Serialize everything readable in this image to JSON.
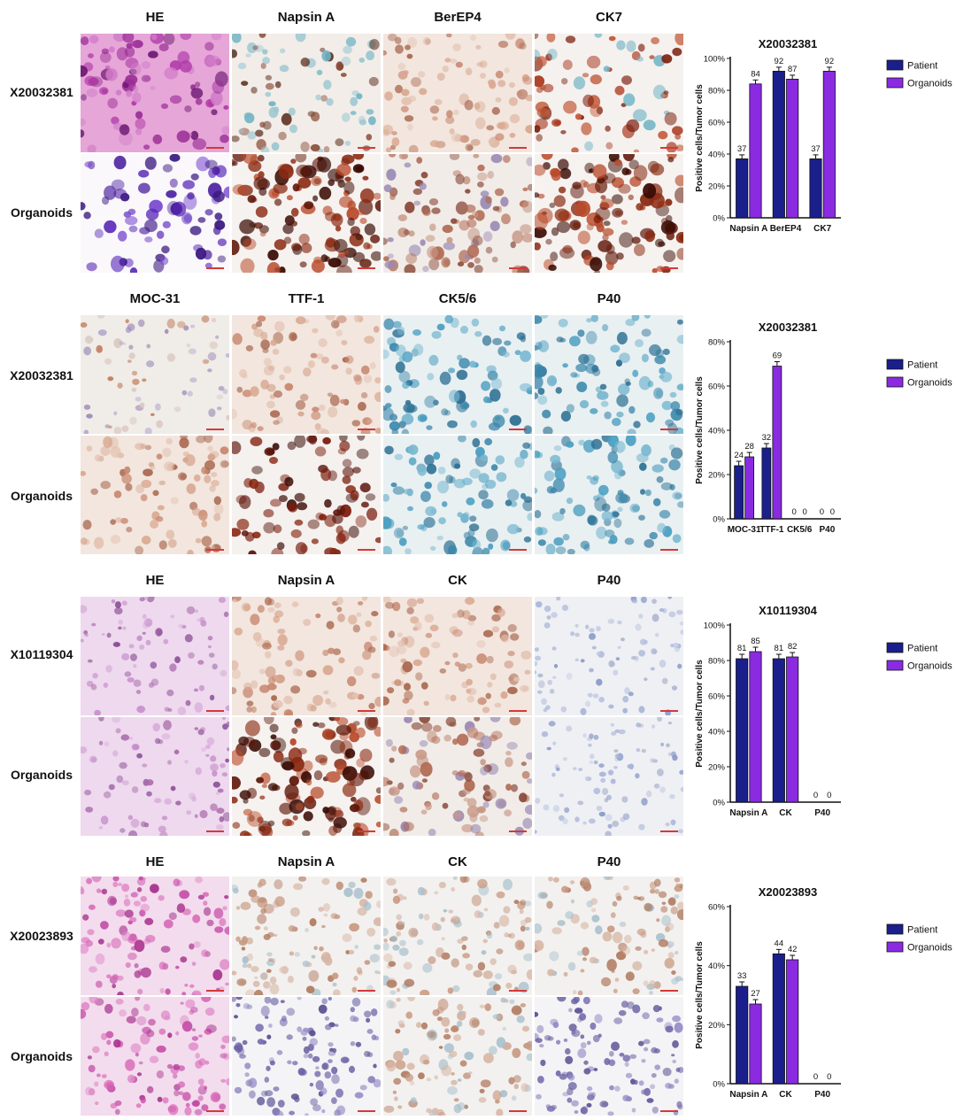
{
  "panels": [
    {
      "headers": [
        "HE",
        "Napsin A",
        "BerEP4",
        "CK7"
      ],
      "row_labels": [
        "X20032381",
        "Organoids"
      ],
      "tiles": [
        [
          "stain-he-dense",
          "stain-ihc-scattered",
          "stain-ihc-light",
          "stain-ihc-strong"
        ],
        [
          "stain-he-clusters",
          "stain-ihc-dense",
          "stain-ihc-medium",
          "stain-ihc-dense"
        ]
      ]
    },
    {
      "headers": [
        "MOC-31",
        "TTF-1",
        "CK5/6",
        "P40"
      ],
      "row_labels": [
        "X20032381",
        "Organoids"
      ],
      "tiles": [
        [
          "stain-ihc-sparse",
          "stain-ihc-light",
          "stain-hema-blue",
          "stain-hema-blue"
        ],
        [
          "stain-ihc-light",
          "stain-nuclear-strong",
          "stain-hema-blue",
          "stain-hema-blue"
        ]
      ]
    },
    {
      "headers": [
        "HE",
        "Napsin A",
        "CK",
        "P40"
      ],
      "row_labels": [
        "X10119304",
        "Organoids"
      ],
      "tiles": [
        [
          "stain-he-pale",
          "stain-ihc-light",
          "stain-ihc-light",
          "stain-hema-pale"
        ],
        [
          "stain-he-pale",
          "stain-ihc-dense",
          "stain-ihc-medium",
          "stain-hema-pale"
        ]
      ]
    },
    {
      "headers": [
        "HE",
        "Napsin A",
        "CK",
        "P40"
      ],
      "row_labels": [
        "X20023893",
        "Organoids"
      ],
      "tiles": [
        [
          "stain-he-tissue",
          "stain-ihc-tissue",
          "stain-ihc-tissue",
          "stain-ihc-tissue"
        ],
        [
          "stain-he-tissue",
          "stain-hema-tissue",
          "stain-ihc-tissue",
          "stain-hema-tissue"
        ]
      ]
    }
  ],
  "colors": {
    "patient": "#1a1f8c",
    "organoids": "#8a2be2"
  },
  "chart_data": [
    {
      "type": "bar",
      "title": "X20032381",
      "ylabel": "Positive cells/Tumor cells",
      "ylim": [
        0,
        100
      ],
      "yticks": [
        "0%",
        "20%",
        "40%",
        "60%",
        "80%",
        "100%"
      ],
      "categories": [
        "Napsin A",
        "BerEP4",
        "CK7"
      ],
      "series": [
        {
          "name": "Patient",
          "values": [
            37,
            92,
            37
          ],
          "labels": [
            "37",
            "92",
            "37"
          ]
        },
        {
          "name": "Organoids",
          "values": [
            84,
            87,
            92
          ],
          "labels": [
            "84",
            "87",
            "92"
          ]
        }
      ],
      "legend": "top-right"
    },
    {
      "type": "bar",
      "title": "X20032381",
      "ylabel": "Positive cells/Tumor cells",
      "ylim": [
        0,
        80
      ],
      "yticks": [
        "0%",
        "20%",
        "40%",
        "60%",
        "80%"
      ],
      "categories": [
        "MOC-31",
        "TTF-1",
        "CK5/6",
        "P40"
      ],
      "series": [
        {
          "name": "Patient",
          "values": [
            24,
            32,
            0,
            0
          ],
          "labels": [
            "24",
            "32",
            "0",
            "0"
          ]
        },
        {
          "name": "Organoids",
          "values": [
            28,
            69,
            0,
            0
          ],
          "labels": [
            "28",
            "69",
            "0",
            "0"
          ]
        }
      ],
      "legend": "right"
    },
    {
      "type": "bar",
      "title": "X10119304",
      "ylabel": "Positive cells/Tumor cells",
      "ylim": [
        0,
        100
      ],
      "yticks": [
        "0%",
        "20%",
        "40%",
        "60%",
        "80%",
        "100%"
      ],
      "categories": [
        "Napsin A",
        "CK",
        "P40"
      ],
      "series": [
        {
          "name": "Patient",
          "values": [
            81,
            81,
            0
          ],
          "labels": [
            "81",
            "81",
            "0"
          ]
        },
        {
          "name": "Organoids",
          "values": [
            85,
            82,
            0
          ],
          "labels": [
            "85",
            "82",
            "0"
          ]
        }
      ],
      "legend": "top-right"
    },
    {
      "type": "bar",
      "title": "X20023893",
      "ylabel": "Positive cells/Tumor cells",
      "ylim": [
        0,
        60
      ],
      "yticks": [
        "0%",
        "20%",
        "40%",
        "60%"
      ],
      "categories": [
        "Napsin A",
        "CK",
        "P40"
      ],
      "series": [
        {
          "name": "Patient",
          "values": [
            33,
            44,
            0
          ],
          "labels": [
            "33",
            "44",
            "0"
          ]
        },
        {
          "name": "Organoids",
          "values": [
            27,
            42,
            0
          ],
          "labels": [
            "27",
            "42",
            "0"
          ]
        }
      ],
      "legend": "top-right"
    }
  ]
}
